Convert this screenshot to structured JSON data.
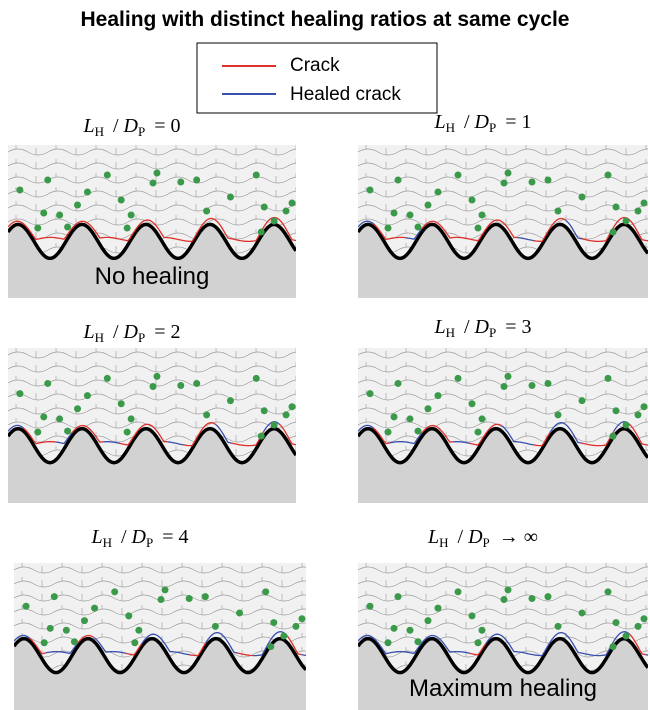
{
  "header": {
    "title": "Healing with distinct healing ratios at same cycle"
  },
  "legend": {
    "items": [
      {
        "label": "Crack",
        "color": "#e0302a"
      },
      {
        "label": "Healed crack",
        "color": "#3a4fb0"
      }
    ]
  },
  "panels": [
    {
      "label": {
        "var1": "L",
        "sub1": "H",
        "sep": "/",
        "var2": "D",
        "sub2": "P",
        "relation": "= 0"
      },
      "note": "No healing"
    },
    {
      "label": {
        "var1": "L",
        "sub1": "H",
        "sep": "/",
        "var2": "D",
        "sub2": "P",
        "relation": "= 1"
      }
    },
    {
      "label": {
        "var1": "L",
        "sub1": "H",
        "sep": "/",
        "var2": "D",
        "sub2": "P",
        "relation": "= 2"
      }
    },
    {
      "label": {
        "var1": "L",
        "sub1": "H",
        "sep": "/",
        "var2": "D",
        "sub2": "P",
        "relation": "= 3"
      }
    },
    {
      "label": {
        "var1": "L",
        "sub1": "H",
        "sep": "/",
        "var2": "D",
        "sub2": "P",
        "relation": "= 4"
      }
    },
    {
      "label": {
        "var1": "L",
        "sub1": "H",
        "sep": "/",
        "var2": "D",
        "sub2": "P",
        "relation": "→ ∞"
      },
      "note": "Maximum healing"
    }
  ]
}
